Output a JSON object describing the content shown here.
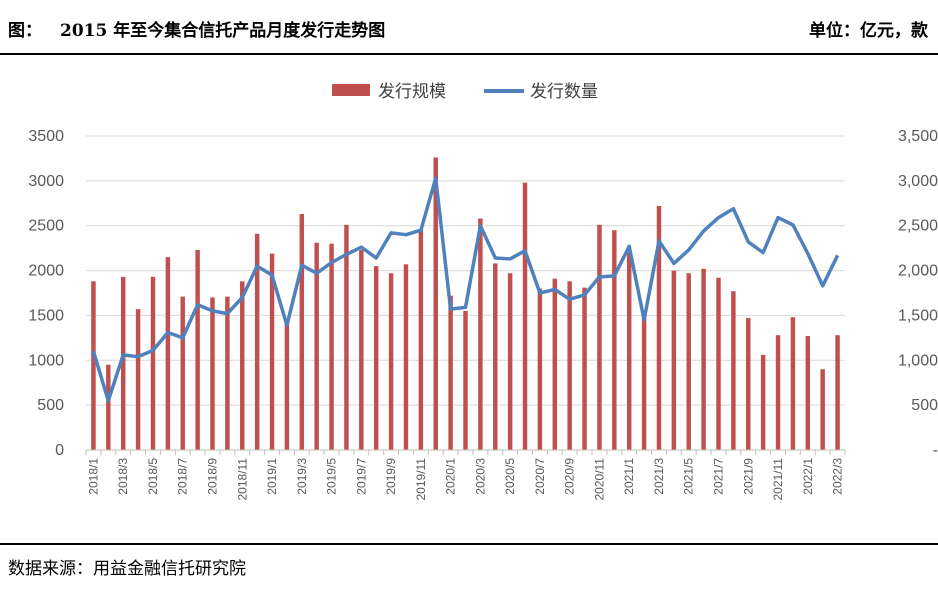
{
  "header": {
    "label": "图：",
    "title": "2015 年至今集合信托产品月度发行走势图",
    "unit": "单位：亿元，款"
  },
  "footer": {
    "source": "数据来源：用益金融信托研究院"
  },
  "colors": {
    "bar": "#C0504D",
    "line": "#4F81BD",
    "grid": "#D9D9D9",
    "axis_text": "#595959"
  },
  "chart_data": {
    "type": "bar+line",
    "legend_position": "top",
    "grid": true,
    "categories": [
      "2018/1",
      "2018/2",
      "2018/3",
      "2018/4",
      "2018/5",
      "2018/6",
      "2018/7",
      "2018/8",
      "2018/9",
      "2018/10",
      "2018/11",
      "2018/12",
      "2019/1",
      "2019/2",
      "2019/3",
      "2019/4",
      "2019/5",
      "2019/6",
      "2019/7",
      "2019/8",
      "2019/9",
      "2019/10",
      "2019/11",
      "2019/12",
      "2020/1",
      "2020/2",
      "2020/3",
      "2020/4",
      "2020/5",
      "2020/6",
      "2020/7",
      "2020/8",
      "2020/9",
      "2020/10",
      "2020/11",
      "2020/12",
      "2021/1",
      "2021/2",
      "2021/3",
      "2021/4",
      "2021/5",
      "2021/6",
      "2021/7",
      "2021/8",
      "2021/9",
      "2021/10",
      "2021/11",
      "2021/12",
      "2022/1",
      "2022/2",
      "2022/3"
    ],
    "x_tick_labels": [
      "2018/1",
      "2018/3",
      "2018/5",
      "2018/7",
      "2018/9",
      "2018/11",
      "2019/1",
      "2019/3",
      "2019/5",
      "2019/7",
      "2019/9",
      "2019/11",
      "2020/1",
      "2020/3",
      "2020/5",
      "2020/7",
      "2020/9",
      "2020/11",
      "2021/1",
      "2021/3",
      "2021/5",
      "2021/7",
      "2021/9",
      "2021/11",
      "2022/1",
      "2022/3"
    ],
    "y_left": {
      "min": 0,
      "max": 3500,
      "ticks": [
        "0",
        "500",
        "1000",
        "1500",
        "2000",
        "2500",
        "3000",
        "3500"
      ]
    },
    "y_right": {
      "min": 0,
      "max": 3500,
      "ticks": [
        "-",
        "500",
        "1,000",
        "1,500",
        "2,000",
        "2,500",
        "3,000",
        "3,500"
      ]
    },
    "series": [
      {
        "name": "发行规模",
        "type": "bar",
        "axis": "left",
        "values": [
          1880,
          950,
          1930,
          1570,
          1930,
          2150,
          1710,
          2230,
          1700,
          1710,
          1880,
          2410,
          2190,
          1440,
          2630,
          2310,
          2300,
          2510,
          2230,
          2050,
          1970,
          2070,
          2460,
          3260,
          1720,
          1550,
          2580,
          2080,
          1970,
          2980,
          1800,
          1910,
          1880,
          1810,
          2510,
          2450,
          2200,
          1500,
          2720,
          2000,
          1970,
          2020,
          1920,
          1770,
          1470,
          1060,
          1280,
          1480,
          1270,
          900,
          1280
        ]
      },
      {
        "name": "发行数量",
        "type": "line",
        "axis": "right",
        "values": [
          1100,
          550,
          1060,
          1040,
          1110,
          1310,
          1250,
          1620,
          1550,
          1520,
          1700,
          2050,
          1950,
          1390,
          2060,
          1970,
          2090,
          2180,
          2260,
          2140,
          2420,
          2400,
          2450,
          3030,
          1570,
          1590,
          2500,
          2140,
          2130,
          2220,
          1750,
          1790,
          1680,
          1730,
          1930,
          1940,
          2270,
          1450,
          2330,
          2080,
          2230,
          2440,
          2590,
          2690,
          2320,
          2200,
          2590,
          2510,
          2190,
          1830,
          2170
        ]
      }
    ]
  }
}
